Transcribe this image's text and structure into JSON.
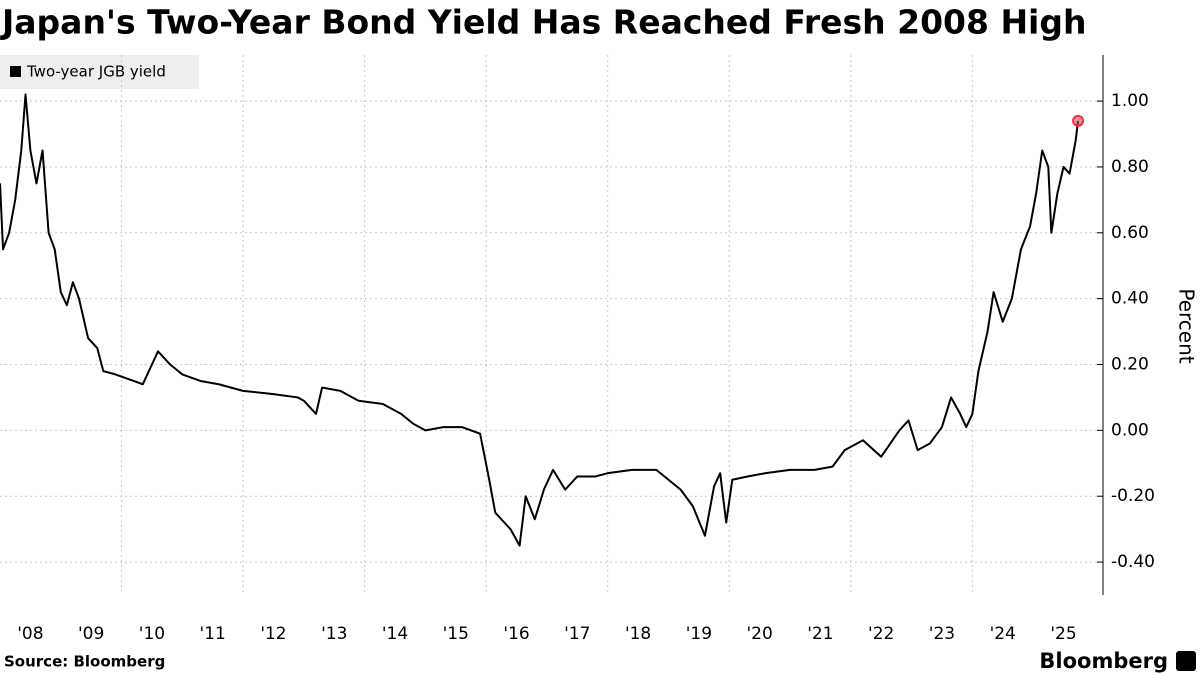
{
  "chart_data": {
    "type": "line",
    "title": "Japan's Two-Year Bond Yield Has Reached Fresh 2008 High",
    "y_label": "Percent",
    "source": "Source: Bloomberg",
    "brand": "Bloomberg",
    "x": [
      2008.0,
      2008.05,
      2008.15,
      2008.25,
      2008.35,
      2008.42,
      2008.5,
      2008.6,
      2008.7,
      2008.8,
      2008.9,
      2009.0,
      2009.1,
      2009.2,
      2009.3,
      2009.45,
      2009.6,
      2009.7,
      2009.9,
      2010.2,
      2010.35,
      2010.5,
      2010.6,
      2010.8,
      2011.0,
      2011.3,
      2011.6,
      2012.0,
      2012.5,
      2012.9,
      2013.0,
      2013.2,
      2013.3,
      2013.6,
      2013.9,
      2014.3,
      2014.6,
      2014.8,
      2015.0,
      2015.3,
      2015.6,
      2015.9,
      2016.05,
      2016.15,
      2016.4,
      2016.55,
      2016.65,
      2016.8,
      2016.95,
      2017.1,
      2017.3,
      2017.5,
      2017.8,
      2018.0,
      2018.4,
      2018.8,
      2019.0,
      2019.2,
      2019.4,
      2019.6,
      2019.75,
      2019.85,
      2019.95,
      2020.05,
      2020.3,
      2020.6,
      2021.0,
      2021.4,
      2021.7,
      2021.9,
      2022.2,
      2022.5,
      2022.8,
      2022.95,
      2023.1,
      2023.3,
      2023.5,
      2023.65,
      2023.8,
      2023.9,
      2024.0,
      2024.1,
      2024.25,
      2024.35,
      2024.5,
      2024.65,
      2024.8,
      2024.95,
      2025.05,
      2025.15,
      2025.25,
      2025.3,
      2025.4,
      2025.5,
      2025.6,
      2025.7,
      2025.74
    ],
    "series": [
      {
        "name": "Two-year JGB yield",
        "color": "#000000",
        "values": [
          0.75,
          0.55,
          0.6,
          0.7,
          0.85,
          1.02,
          0.85,
          0.75,
          0.85,
          0.6,
          0.55,
          0.42,
          0.38,
          0.45,
          0.4,
          0.28,
          0.25,
          0.18,
          0.17,
          0.15,
          0.14,
          0.2,
          0.24,
          0.2,
          0.17,
          0.15,
          0.14,
          0.12,
          0.11,
          0.1,
          0.09,
          0.05,
          0.13,
          0.12,
          0.09,
          0.08,
          0.05,
          0.02,
          0.0,
          0.01,
          0.01,
          -0.01,
          -0.15,
          -0.25,
          -0.3,
          -0.35,
          -0.2,
          -0.27,
          -0.18,
          -0.12,
          -0.18,
          -0.14,
          -0.14,
          -0.13,
          -0.12,
          -0.12,
          -0.15,
          -0.18,
          -0.23,
          -0.32,
          -0.17,
          -0.13,
          -0.28,
          -0.15,
          -0.14,
          -0.13,
          -0.12,
          -0.12,
          -0.11,
          -0.06,
          -0.03,
          -0.08,
          0.0,
          0.03,
          -0.06,
          -0.04,
          0.01,
          0.1,
          0.05,
          0.01,
          0.05,
          0.18,
          0.3,
          0.42,
          0.33,
          0.4,
          0.55,
          0.62,
          0.72,
          0.85,
          0.8,
          0.6,
          0.72,
          0.8,
          0.78,
          0.88,
          0.94
        ]
      }
    ],
    "last_point_color": "#e8334a",
    "xlim": [
      2008.0,
      2026.15
    ],
    "xticks": [
      {
        "value": 2008,
        "label": "'08"
      },
      {
        "value": 2009,
        "label": "'09"
      },
      {
        "value": 2010,
        "label": "'10"
      },
      {
        "value": 2011,
        "label": "'11"
      },
      {
        "value": 2012,
        "label": "'12"
      },
      {
        "value": 2013,
        "label": "'13"
      },
      {
        "value": 2014,
        "label": "'14"
      },
      {
        "value": 2015,
        "label": "'15"
      },
      {
        "value": 2016,
        "label": "'16"
      },
      {
        "value": 2017,
        "label": "'17"
      },
      {
        "value": 2018,
        "label": "'18"
      },
      {
        "value": 2019,
        "label": "'19"
      },
      {
        "value": 2020,
        "label": "'20"
      },
      {
        "value": 2021,
        "label": "'21"
      },
      {
        "value": 2022,
        "label": "'22"
      },
      {
        "value": 2023,
        "label": "'23"
      },
      {
        "value": 2024,
        "label": "'24"
      },
      {
        "value": 2025,
        "label": "'25"
      }
    ],
    "ylim": [
      -0.5,
      1.14
    ],
    "yticks": [
      {
        "value": 1.0,
        "label": "1.00"
      },
      {
        "value": 0.8,
        "label": "0.80"
      },
      {
        "value": 0.6,
        "label": "0.60"
      },
      {
        "value": 0.4,
        "label": "0.40"
      },
      {
        "value": 0.2,
        "label": "0.20"
      },
      {
        "value": 0,
        "label": "0.00"
      },
      {
        "value": -0.2,
        "label": "-0.20"
      },
      {
        "value": -0.4,
        "label": "-0.40"
      }
    ],
    "grid": true
  }
}
